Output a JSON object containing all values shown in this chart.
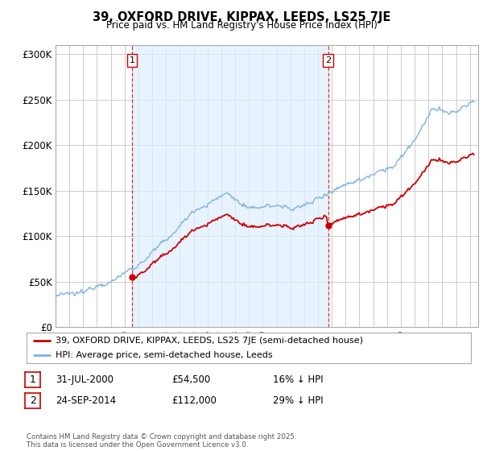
{
  "title_line1": "39, OXFORD DRIVE, KIPPAX, LEEDS, LS25 7JE",
  "title_line2": "Price paid vs. HM Land Registry's House Price Index (HPI)",
  "bg_color": "#ffffff",
  "plot_bg_color": "#ffffff",
  "grid_color": "#cccccc",
  "hpi_color": "#7fb3e0",
  "price_color": "#cc0000",
  "vline_color": "#cc0000",
  "fill_color": "#ddeeff",
  "sale1_date": "31-JUL-2000",
  "sale1_price": 54500,
  "sale1_pct": "16% ↓ HPI",
  "sale2_date": "24-SEP-2014",
  "sale2_price": 112000,
  "sale2_pct": "29% ↓ HPI",
  "legend_line1": "39, OXFORD DRIVE, KIPPAX, LEEDS, LS25 7JE (semi-detached house)",
  "legend_line2": "HPI: Average price, semi-detached house, Leeds",
  "footer": "Contains HM Land Registry data © Crown copyright and database right 2025.\nThis data is licensed under the Open Government Licence v3.0.",
  "ylim": [
    0,
    310000
  ],
  "yticks": [
    0,
    50000,
    100000,
    150000,
    200000,
    250000,
    300000
  ],
  "ytick_labels": [
    "£0",
    "£50K",
    "£100K",
    "£150K",
    "£200K",
    "£250K",
    "£300K"
  ],
  "sale1_x": 2000.54,
  "sale2_x": 2014.73
}
